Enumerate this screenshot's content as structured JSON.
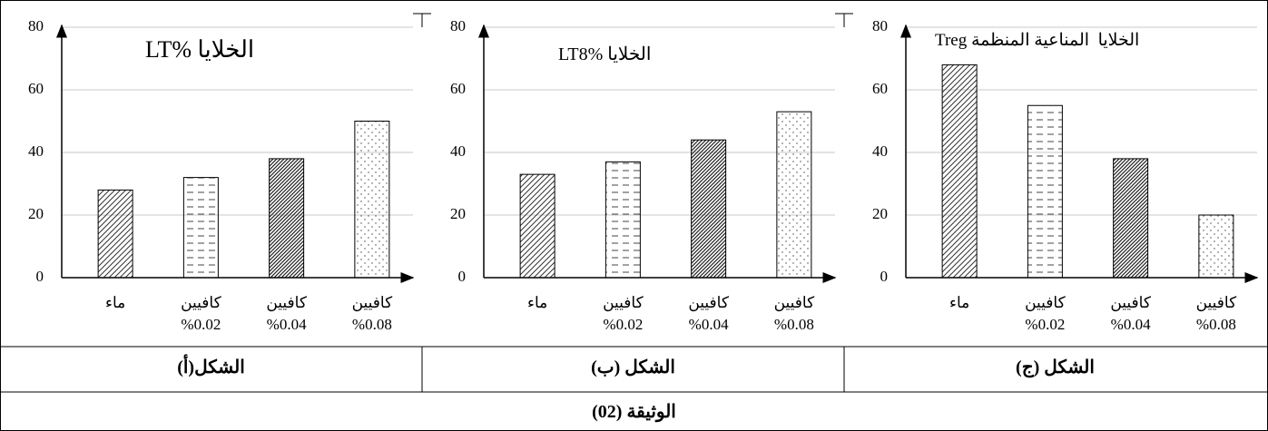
{
  "chart_data": [
    {
      "type": "bar",
      "title": "الخلايا %LT",
      "caption": "الشكل(أ)",
      "categories": [
        "ماء",
        "كافيين\n%0.02",
        "كافيين\n%0.04",
        "كافيين\n%0.08"
      ],
      "values": [
        28,
        32,
        38,
        50
      ],
      "ylim": [
        0,
        80
      ],
      "yticks": [
        0,
        20,
        40,
        60,
        80
      ],
      "grid": true
    },
    {
      "type": "bar",
      "title": "الخلايا %LT8",
      "caption": "الشكل (ب)",
      "categories": [
        "ماء",
        "كافيين\n%0.02",
        "كافيين\n%0.04",
        "كافيين\n%0.08"
      ],
      "values": [
        33,
        37,
        44,
        53
      ],
      "ylim": [
        0,
        80
      ],
      "yticks": [
        0,
        20,
        40,
        60,
        80
      ],
      "grid": true
    },
    {
      "type": "bar",
      "title": "الخلايا  المناعية المنظمة Treg",
      "caption": "الشكل (ج)",
      "categories": [
        "ماء",
        "كافيين\n%0.02",
        "كافيين\n%0.04",
        "كافيين\n%0.08"
      ],
      "values": [
        68,
        55,
        38,
        20
      ],
      "ylim": [
        0,
        80
      ],
      "yticks": [
        0,
        20,
        40,
        60,
        80
      ],
      "grid": true
    }
  ],
  "caption": "الوثيقة (02)"
}
